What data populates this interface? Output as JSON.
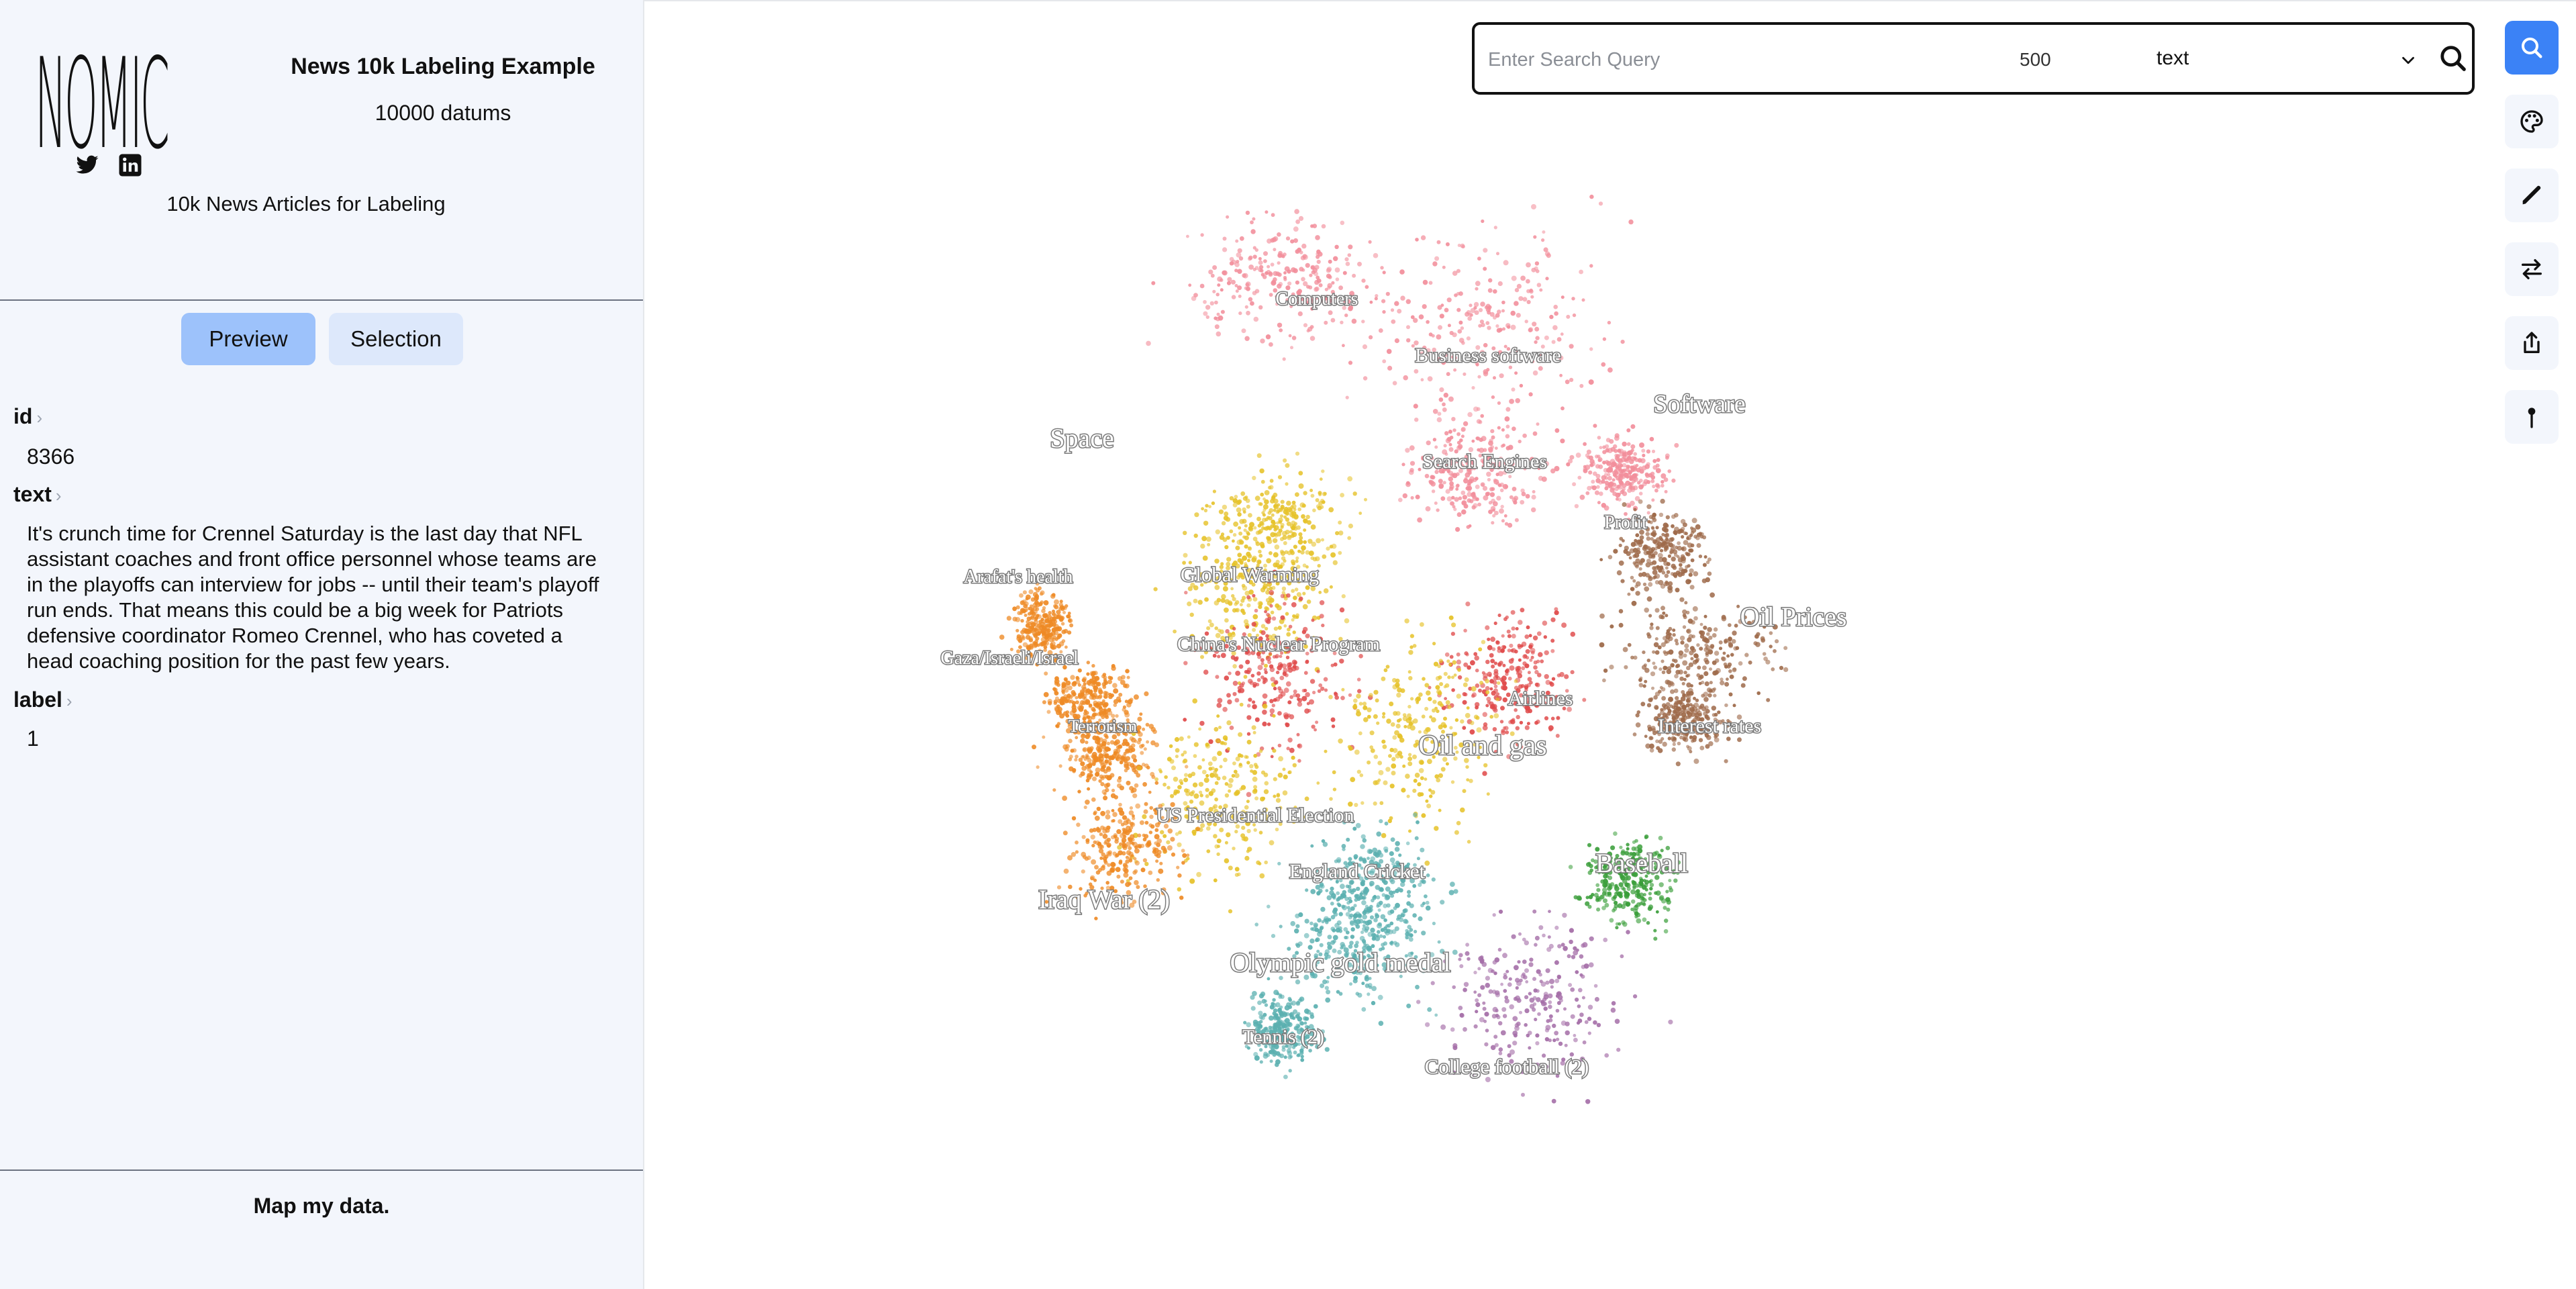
{
  "sidebar": {
    "logo_text": "NOMIC",
    "project_title": "News 10k Labeling Example",
    "datum_count": "10000 datums",
    "project_description": "10k News Articles for Labeling",
    "tabs": [
      {
        "label": "Preview",
        "active": true
      },
      {
        "label": "Selection",
        "active": false
      }
    ],
    "fields": [
      {
        "name": "id",
        "value": "8366"
      },
      {
        "name": "text",
        "value": "It's crunch time for Crennel Saturday is the last day that NFL assistant coaches and front office personnel whose teams are in the playoffs can interview for jobs -- until their team's playoff run ends. That means this could be a big week for Patriots defensive coordinator Romeo Crennel, who has coveted a head coaching position for the past few years."
      },
      {
        "name": "label",
        "value": "1"
      }
    ],
    "footer_link": "Map my data.",
    "icons": [
      "twitter-icon",
      "linkedin-icon"
    ]
  },
  "search": {
    "placeholder": "Enter Search Query",
    "query": "",
    "neighbors": "500",
    "field": "text"
  },
  "toolbar": {
    "buttons": [
      "search",
      "palette",
      "pen",
      "swap",
      "share",
      "pin"
    ],
    "accent_color": "#3b82f6"
  },
  "map": {
    "topics": [
      {
        "label": "Computers",
        "color": "#f28e9b"
      },
      {
        "label": "Business software",
        "color": "#f28e9b"
      },
      {
        "label": "Software",
        "color": "#f28e9b"
      },
      {
        "label": "Space",
        "color": "#e6c229"
      },
      {
        "label": "Search Engines",
        "color": "#f28e9b"
      },
      {
        "label": "Profit",
        "color": "#9e6a4a"
      },
      {
        "label": "Arafat's health",
        "color": "#ee8a25"
      },
      {
        "label": "Global Warming",
        "color": "#e6c229"
      },
      {
        "label": "Oil Prices",
        "color": "#9e6a4a"
      },
      {
        "label": "China's Nuclear Program",
        "color": "#e04b4b"
      },
      {
        "label": "Gaza/Israeli/Israel",
        "color": "#ee8a25"
      },
      {
        "label": "Airlines",
        "color": "#e04b4b"
      },
      {
        "label": "Terrorism",
        "color": "#ee8a25"
      },
      {
        "label": "Interest rates",
        "color": "#9e6a4a"
      },
      {
        "label": "Oil and gas",
        "color": "#e6c229"
      },
      {
        "label": "US Presidential Election",
        "color": "#e6c229"
      },
      {
        "label": "Baseball",
        "color": "#3a9e3a"
      },
      {
        "label": "England Cricket",
        "color": "#5bb0b0"
      },
      {
        "label": "Iraq War (2)",
        "color": "#ee8a25"
      },
      {
        "label": "Olympic gold medal",
        "color": "#5bb0b0"
      },
      {
        "label": "Tennis (2)",
        "color": "#5bb0b0"
      },
      {
        "label": "College football (2)",
        "color": "#a56fa8"
      }
    ]
  }
}
